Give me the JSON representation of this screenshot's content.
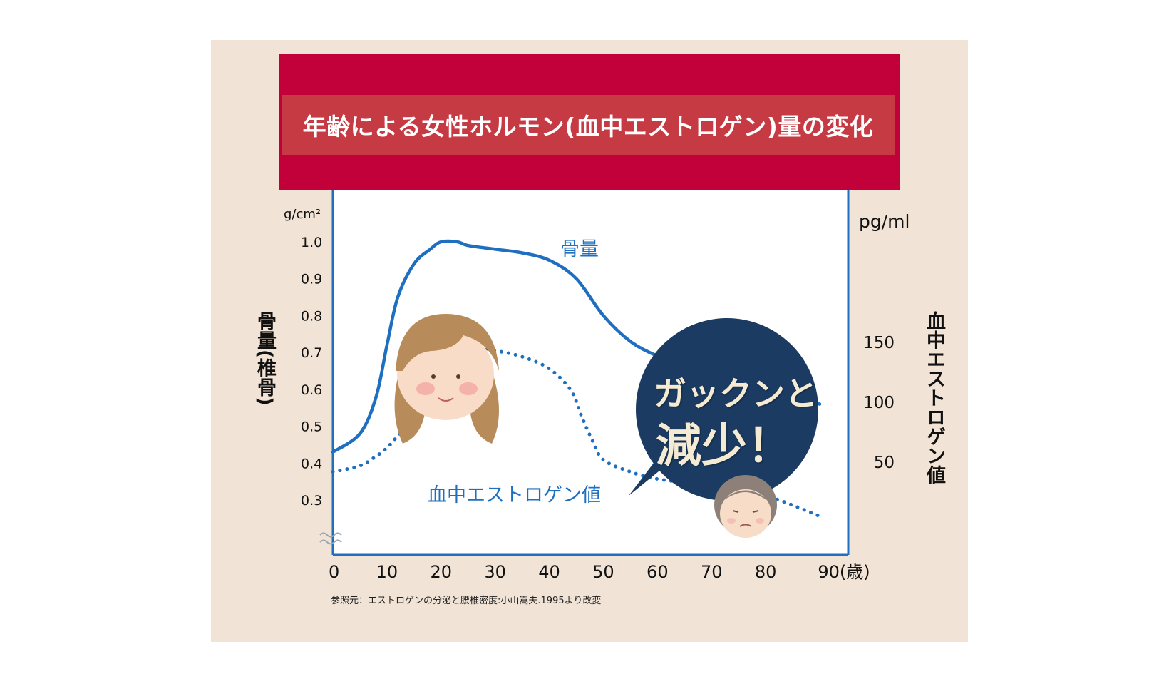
{
  "colors": {
    "panel_bg": "#f1e3d5",
    "banner": "#c20039",
    "title_bar": "#c63a43",
    "series": "#1e6fbf",
    "bubble": "#1b3b63"
  },
  "bubble": {
    "line1": "ガックンと",
    "line2": "減少！"
  },
  "source_note": "参照元：エストロゲンの分泌と腰椎密度:小山嵩夫.1995より改変",
  "icons": [
    "young-woman-face-icon",
    "elderly-woman-face-icon",
    "axis-break-icon"
  ],
  "chart_data": {
    "type": "line",
    "title": "年齢による女性ホルモン(血中エストロゲン)量の変化",
    "xlabel": "",
    "x_unit": "(歳)",
    "x_ticks": [
      "0",
      "10",
      "20",
      "30",
      "40",
      "50",
      "60",
      "70",
      "80",
      "90"
    ],
    "xlim": [
      0,
      90
    ],
    "y_left": {
      "label": "骨量(椎骨)",
      "unit": "g/cm²",
      "ticks": [
        "1.0",
        "0.9",
        "0.8",
        "0.7",
        "0.6",
        "0.5",
        "0.4",
        "0.3"
      ],
      "ylim": [
        0.2,
        1.0
      ],
      "axis_break": true
    },
    "y_right": {
      "label": "血中エストロゲン値",
      "unit": "pg/ml",
      "ticks": [
        "150",
        "100",
        "50"
      ],
      "ylim": [
        0,
        200
      ]
    },
    "grid": false,
    "legend": "none",
    "series": [
      {
        "name": "骨量",
        "axis": "left",
        "style": "solid",
        "x": [
          0,
          5,
          8,
          10,
          12,
          15,
          18,
          20,
          23,
          25,
          30,
          35,
          40,
          45,
          50,
          55,
          60,
          65,
          70,
          80,
          90
        ],
        "y": [
          0.43,
          0.48,
          0.58,
          0.72,
          0.85,
          0.94,
          0.98,
          1.0,
          1.0,
          0.99,
          0.98,
          0.97,
          0.95,
          0.9,
          0.8,
          0.73,
          0.69,
          0.66,
          0.64,
          0.6,
          0.56
        ]
      },
      {
        "name": "血中エストロゲン値",
        "axis": "right",
        "style": "dotted",
        "x": [
          0,
          5,
          8,
          10,
          12,
          15,
          18,
          20,
          25,
          30,
          35,
          40,
          44,
          46,
          48,
          50,
          55,
          60,
          70,
          80,
          90
        ],
        "y": [
          42,
          47,
          55,
          62,
          72,
          88,
          105,
          118,
          145,
          143,
          138,
          128,
          110,
          88,
          68,
          52,
          42,
          36,
          30,
          22,
          5
        ]
      }
    ]
  }
}
